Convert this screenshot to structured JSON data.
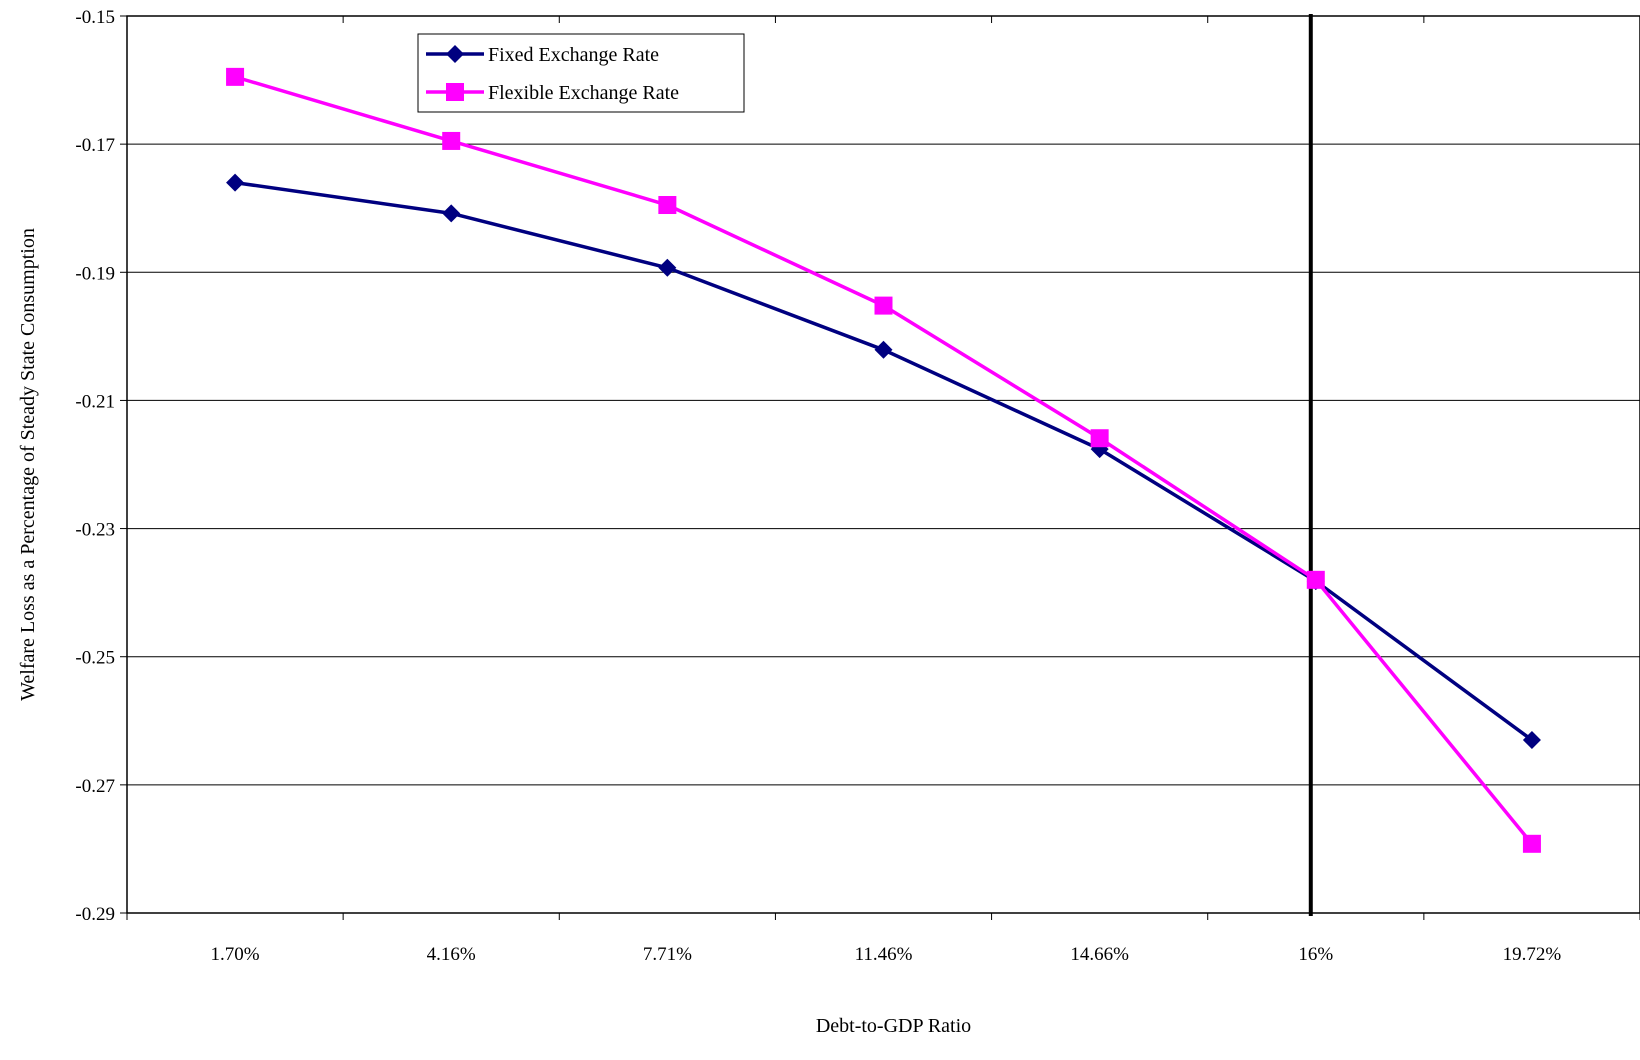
{
  "chart_data": {
    "type": "line",
    "title": "",
    "xlabel": "Debt-to-GDP Ratio",
    "ylabel": "Welfare Loss as a Percentage of Steady State Consumption",
    "categories": [
      "1.70%",
      "4.16%",
      "7.71%",
      "11.46%",
      "14.66%",
      "16%",
      "19.72%"
    ],
    "ylim": [
      -0.29,
      -0.15
    ],
    "yticks": [
      -0.15,
      -0.17,
      -0.19,
      -0.21,
      -0.23,
      -0.25,
      -0.27,
      -0.29
    ],
    "ytick_labels": [
      "-0.15",
      "-0.17",
      "-0.19",
      "-0.21",
      "-0.23",
      "-0.25",
      "-0.27",
      "-0.29"
    ],
    "grid": true,
    "legend_position": "top-left",
    "vertical_marker": {
      "category": "16%"
    },
    "series": [
      {
        "name": "Fixed Exchange Rate",
        "color": "#000080",
        "marker": "diamond",
        "values": [
          -0.176,
          -0.1808,
          -0.1893,
          -0.2021,
          -0.2176,
          -0.2382,
          -0.263
        ]
      },
      {
        "name": "Flexible Exchange Rate",
        "color": "#FF00FF",
        "marker": "square",
        "values": [
          -0.1595,
          -0.1695,
          -0.1795,
          -0.1952,
          -0.2159,
          -0.238,
          -0.2792
        ]
      }
    ]
  }
}
